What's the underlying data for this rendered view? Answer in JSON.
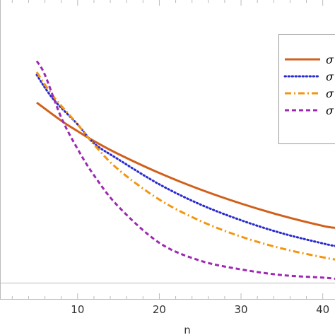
{
  "chart_data": {
    "type": "line",
    "xlabel": "n",
    "ylabel": "",
    "xlim": [
      0.5,
      41.5
    ],
    "ylim": [
      0.0,
      1.0
    ],
    "x_ticks": [
      10,
      20,
      30,
      40
    ],
    "x_tick_labels": [
      "10",
      "20",
      "30",
      "40"
    ],
    "grid": false,
    "legend_position": "right",
    "series": [
      {
        "name": "σ",
        "color": "#d0601a",
        "dash": "solid",
        "x": [
          5,
          8,
          10,
          12,
          15,
          20,
          25,
          30,
          35,
          40,
          41.5
        ],
        "y": [
          0.637,
          0.573,
          0.536,
          0.501,
          0.455,
          0.388,
          0.33,
          0.28,
          0.237,
          0.201,
          0.194
        ]
      },
      {
        "name": "σ",
        "color": "#2a2ad0",
        "dash": "dotted",
        "x": [
          5,
          7,
          10,
          12,
          15,
          20,
          25,
          30,
          35,
          40,
          41.5
        ],
        "y": [
          0.735,
          0.65,
          0.56,
          0.493,
          0.436,
          0.348,
          0.277,
          0.221,
          0.175,
          0.139,
          0.13
        ]
      },
      {
        "name": "σ",
        "color": "#f2960e",
        "dash": "dashdot",
        "x": [
          5,
          7,
          10,
          12,
          15,
          20,
          25,
          30,
          35,
          40,
          41.5
        ],
        "y": [
          0.745,
          0.66,
          0.56,
          0.489,
          0.4,
          0.294,
          0.219,
          0.163,
          0.121,
          0.09,
          0.082
        ]
      },
      {
        "name": "σ",
        "color": "#9d28b2",
        "dash": "dashed",
        "x": [
          5,
          6,
          8,
          10,
          12,
          15,
          20,
          25,
          30,
          35,
          40,
          41.5
        ],
        "y": [
          0.784,
          0.735,
          0.584,
          0.473,
          0.38,
          0.269,
          0.141,
          0.078,
          0.047,
          0.027,
          0.018,
          0.014
        ]
      }
    ]
  }
}
